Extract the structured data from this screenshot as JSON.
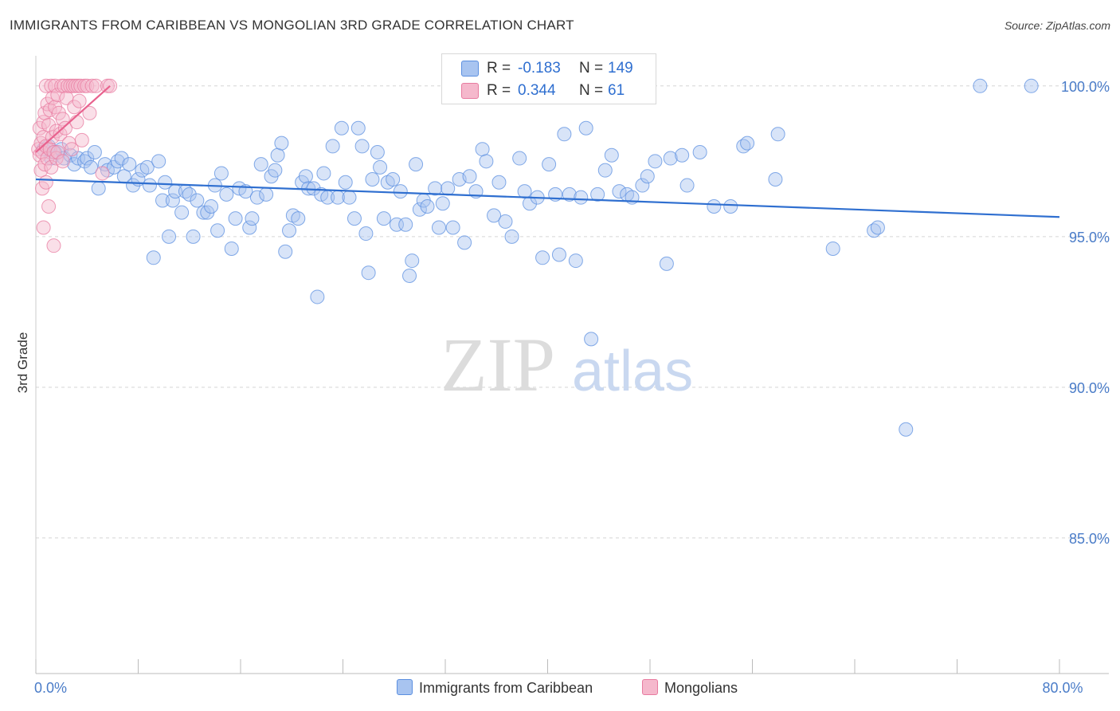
{
  "title": "IMMIGRANTS FROM CARIBBEAN VS MONGOLIAN 3RD GRADE CORRELATION CHART",
  "source": "Source: ZipAtlas.com",
  "colors": {
    "blue": "#5b8fe0",
    "blue_fill": "#a8c4f0",
    "blue_line": "#2f6fd0",
    "pink": "#e87ba0",
    "pink_fill": "#f5b8cc",
    "pink_line": "#e8628e",
    "axis_text": "#4a7cc8",
    "grid": "#d5d5d5"
  },
  "legend": {
    "rows": [
      {
        "r_label": "R =",
        "r_value": "-0.183",
        "n_label": "N =",
        "n_value": "149"
      },
      {
        "r_label": "R =",
        "r_value": "0.344",
        "n_label": "N =",
        "n_value": "61"
      }
    ]
  },
  "bottom_legend": {
    "series1": "Immigrants from Caribbean",
    "series2": "Mongolians"
  },
  "watermark": {
    "zip": "ZIP",
    "atlas": "atlas"
  },
  "chart_data": {
    "type": "scatter",
    "title": "IMMIGRANTS FROM CARIBBEAN VS MONGOLIAN 3RD GRADE CORRELATION CHART",
    "xlabel": "",
    "ylabel": "3rd Grade",
    "xlim": [
      0,
      80
    ],
    "ylim": [
      80.5,
      101.0
    ],
    "x_tick_labels": [
      {
        "value": 0,
        "label": "0.0%"
      },
      {
        "value": 80,
        "label": "80.0%"
      }
    ],
    "y_tick_labels": [
      {
        "value": 100,
        "label": "100.0%"
      },
      {
        "value": 95,
        "label": "95.0%"
      },
      {
        "value": 90,
        "label": "90.0%"
      },
      {
        "value": 85,
        "label": "85.0%"
      }
    ],
    "series": [
      {
        "name": "Immigrants from Caribbean",
        "color": "#5b8fe0",
        "trend": {
          "x": [
            0,
            80
          ],
          "y": [
            96.9,
            95.65
          ]
        },
        "points": [
          [
            0.6,
            97.9
          ],
          [
            1.0,
            98.0
          ],
          [
            1.2,
            97.6
          ],
          [
            1.5,
            97.8
          ],
          [
            2.0,
            97.9
          ],
          [
            2.2,
            97.6
          ],
          [
            2.7,
            97.7
          ],
          [
            3.0,
            97.4
          ],
          [
            3.3,
            97.6
          ],
          [
            3.8,
            97.5
          ],
          [
            4.0,
            97.6
          ],
          [
            4.3,
            97.3
          ],
          [
            4.6,
            97.8
          ],
          [
            4.9,
            96.6
          ],
          [
            5.4,
            97.4
          ],
          [
            5.6,
            97.2
          ],
          [
            6.1,
            97.3
          ],
          [
            6.4,
            97.5
          ],
          [
            6.7,
            97.6
          ],
          [
            6.9,
            97.0
          ],
          [
            7.3,
            97.4
          ],
          [
            7.6,
            96.7
          ],
          [
            8.0,
            96.9
          ],
          [
            8.3,
            97.2
          ],
          [
            8.7,
            97.3
          ],
          [
            8.9,
            96.7
          ],
          [
            9.2,
            94.3
          ],
          [
            9.6,
            97.5
          ],
          [
            9.9,
            96.2
          ],
          [
            10.1,
            96.8
          ],
          [
            10.4,
            95.0
          ],
          [
            10.7,
            96.2
          ],
          [
            10.9,
            96.5
          ],
          [
            11.4,
            95.8
          ],
          [
            11.7,
            96.5
          ],
          [
            12.0,
            96.4
          ],
          [
            12.3,
            95.0
          ],
          [
            12.6,
            96.2
          ],
          [
            13.1,
            95.8
          ],
          [
            13.4,
            95.8
          ],
          [
            13.7,
            96.0
          ],
          [
            14.0,
            96.7
          ],
          [
            14.2,
            95.2
          ],
          [
            14.5,
            97.1
          ],
          [
            14.9,
            96.4
          ],
          [
            15.3,
            94.6
          ],
          [
            15.6,
            95.6
          ],
          [
            15.9,
            96.6
          ],
          [
            16.4,
            96.5
          ],
          [
            16.7,
            95.3
          ],
          [
            16.9,
            95.6
          ],
          [
            17.3,
            96.3
          ],
          [
            17.6,
            97.4
          ],
          [
            18.0,
            96.4
          ],
          [
            18.4,
            97.0
          ],
          [
            18.7,
            97.2
          ],
          [
            18.9,
            97.7
          ],
          [
            19.2,
            98.1
          ],
          [
            19.5,
            94.5
          ],
          [
            19.8,
            95.2
          ],
          [
            20.1,
            95.7
          ],
          [
            20.5,
            95.6
          ],
          [
            20.8,
            96.8
          ],
          [
            21.1,
            97.0
          ],
          [
            21.3,
            96.6
          ],
          [
            21.7,
            96.6
          ],
          [
            22.0,
            93.0
          ],
          [
            22.3,
            96.4
          ],
          [
            22.5,
            97.1
          ],
          [
            22.8,
            96.3
          ],
          [
            23.2,
            98.0
          ],
          [
            23.6,
            96.3
          ],
          [
            23.9,
            98.6
          ],
          [
            24.2,
            96.8
          ],
          [
            24.5,
            96.3
          ],
          [
            24.9,
            95.6
          ],
          [
            25.2,
            98.6
          ],
          [
            25.5,
            98.0
          ],
          [
            25.8,
            95.1
          ],
          [
            26.0,
            93.8
          ],
          [
            26.3,
            96.9
          ],
          [
            26.7,
            97.8
          ],
          [
            26.9,
            97.3
          ],
          [
            27.2,
            95.6
          ],
          [
            27.5,
            96.8
          ],
          [
            27.9,
            96.9
          ],
          [
            28.2,
            95.4
          ],
          [
            28.5,
            96.5
          ],
          [
            28.9,
            95.4
          ],
          [
            29.2,
            93.7
          ],
          [
            29.4,
            94.2
          ],
          [
            29.7,
            97.4
          ],
          [
            30.0,
            95.9
          ],
          [
            30.3,
            96.2
          ],
          [
            30.6,
            96.0
          ],
          [
            31.2,
            96.6
          ],
          [
            31.5,
            95.3
          ],
          [
            31.8,
            96.1
          ],
          [
            32.2,
            96.6
          ],
          [
            32.6,
            95.3
          ],
          [
            33.1,
            96.9
          ],
          [
            33.5,
            94.8
          ],
          [
            33.9,
            97.0
          ],
          [
            34.4,
            96.5
          ],
          [
            34.9,
            97.9
          ],
          [
            35.2,
            97.5
          ],
          [
            35.8,
            95.7
          ],
          [
            36.2,
            96.8
          ],
          [
            36.7,
            95.5
          ],
          [
            37.2,
            95.0
          ],
          [
            37.8,
            97.6
          ],
          [
            38.2,
            96.5
          ],
          [
            38.6,
            96.1
          ],
          [
            39.2,
            96.3
          ],
          [
            39.6,
            94.3
          ],
          [
            40.1,
            97.4
          ],
          [
            40.6,
            96.4
          ],
          [
            40.9,
            94.4
          ],
          [
            41.3,
            98.4
          ],
          [
            41.7,
            96.4
          ],
          [
            42.2,
            94.2
          ],
          [
            42.6,
            96.3
          ],
          [
            43.0,
            98.6
          ],
          [
            43.4,
            91.6
          ],
          [
            43.9,
            96.4
          ],
          [
            44.5,
            97.2
          ],
          [
            45.0,
            97.7
          ],
          [
            45.6,
            96.5
          ],
          [
            46.2,
            96.4
          ],
          [
            46.6,
            96.3
          ],
          [
            47.4,
            96.7
          ],
          [
            47.8,
            97.0
          ],
          [
            48.4,
            97.5
          ],
          [
            49.3,
            94.1
          ],
          [
            49.6,
            97.6
          ],
          [
            50.5,
            97.7
          ],
          [
            50.9,
            96.7
          ],
          [
            51.9,
            97.8
          ],
          [
            53.0,
            96.0
          ],
          [
            54.3,
            96.0
          ],
          [
            55.3,
            98.0
          ],
          [
            55.6,
            98.1
          ],
          [
            57.8,
            96.9
          ],
          [
            58.0,
            98.4
          ],
          [
            62.3,
            94.6
          ],
          [
            65.5,
            95.2
          ],
          [
            65.8,
            95.3
          ],
          [
            68.0,
            88.6
          ],
          [
            73.8,
            100.0
          ],
          [
            77.8,
            100.0
          ]
        ]
      },
      {
        "name": "Mongolians",
        "color": "#e87ba0",
        "trend": {
          "x": [
            0,
            5.8
          ],
          "y": [
            97.8,
            100.0
          ]
        },
        "points": [
          [
            0.2,
            97.9
          ],
          [
            0.3,
            97.7
          ],
          [
            0.3,
            98.6
          ],
          [
            0.4,
            97.2
          ],
          [
            0.4,
            98.1
          ],
          [
            0.5,
            96.6
          ],
          [
            0.5,
            97.8
          ],
          [
            0.6,
            98.3
          ],
          [
            0.6,
            95.3
          ],
          [
            0.6,
            98.8
          ],
          [
            0.7,
            97.4
          ],
          [
            0.7,
            99.1
          ],
          [
            0.8,
            96.8
          ],
          [
            0.8,
            98.0
          ],
          [
            0.8,
            100.0
          ],
          [
            0.9,
            97.6
          ],
          [
            0.9,
            99.4
          ],
          [
            1.0,
            96.0
          ],
          [
            1.0,
            98.7
          ],
          [
            1.1,
            97.9
          ],
          [
            1.1,
            99.2
          ],
          [
            1.2,
            100.0
          ],
          [
            1.2,
            97.3
          ],
          [
            1.3,
            99.6
          ],
          [
            1.3,
            98.3
          ],
          [
            1.4,
            94.7
          ],
          [
            1.4,
            97.8
          ],
          [
            1.5,
            99.3
          ],
          [
            1.5,
            100.0
          ],
          [
            1.6,
            98.5
          ],
          [
            1.6,
            97.6
          ],
          [
            1.7,
            99.7
          ],
          [
            1.7,
            97.8
          ],
          [
            1.8,
            99.1
          ],
          [
            1.9,
            98.4
          ],
          [
            2.0,
            100.0
          ],
          [
            2.1,
            98.9
          ],
          [
            2.1,
            97.5
          ],
          [
            2.2,
            100.0
          ],
          [
            2.3,
            98.6
          ],
          [
            2.4,
            99.6
          ],
          [
            2.5,
            100.0
          ],
          [
            2.6,
            98.1
          ],
          [
            2.7,
            100.0
          ],
          [
            2.8,
            97.9
          ],
          [
            2.9,
            100.0
          ],
          [
            3.0,
            99.3
          ],
          [
            3.1,
            100.0
          ],
          [
            3.2,
            98.8
          ],
          [
            3.3,
            100.0
          ],
          [
            3.4,
            99.5
          ],
          [
            3.5,
            100.0
          ],
          [
            3.6,
            98.2
          ],
          [
            3.8,
            100.0
          ],
          [
            4.0,
            100.0
          ],
          [
            4.2,
            99.1
          ],
          [
            4.4,
            100.0
          ],
          [
            4.7,
            100.0
          ],
          [
            5.2,
            97.1
          ],
          [
            5.6,
            100.0
          ],
          [
            5.8,
            100.0
          ]
        ]
      }
    ]
  }
}
